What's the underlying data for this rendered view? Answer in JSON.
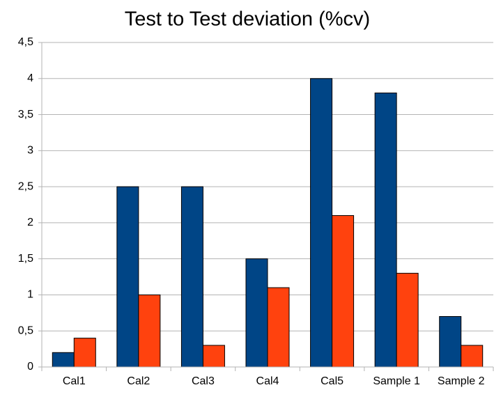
{
  "chart_data": {
    "type": "bar",
    "title": "Test to Test deviation (%cv)",
    "categories": [
      "Cal1",
      "Cal2",
      "Cal3",
      "Cal4",
      "Cal5",
      "Sample 1",
      "Sample 2"
    ],
    "series": [
      {
        "color": "#004586",
        "values": [
          0.2,
          2.5,
          2.5,
          1.5,
          4,
          3.8,
          0.7
        ]
      },
      {
        "color": "#ff420e",
        "values": [
          0.4,
          1,
          0.3,
          1.1,
          2.1,
          1.3,
          0.3
        ]
      }
    ],
    "ylim": [
      0,
      4.5
    ],
    "yticks": [
      0,
      {
        "value": 0.5,
        "label": "0,5"
      },
      1,
      {
        "value": 1.5,
        "label": "1,5"
      },
      2,
      {
        "value": 2.5,
        "label": "2,5"
      },
      3,
      {
        "value": 3.5,
        "label": "3,5"
      },
      4,
      {
        "value": 4.5,
        "label": "4,5"
      }
    ],
    "grid": true
  }
}
